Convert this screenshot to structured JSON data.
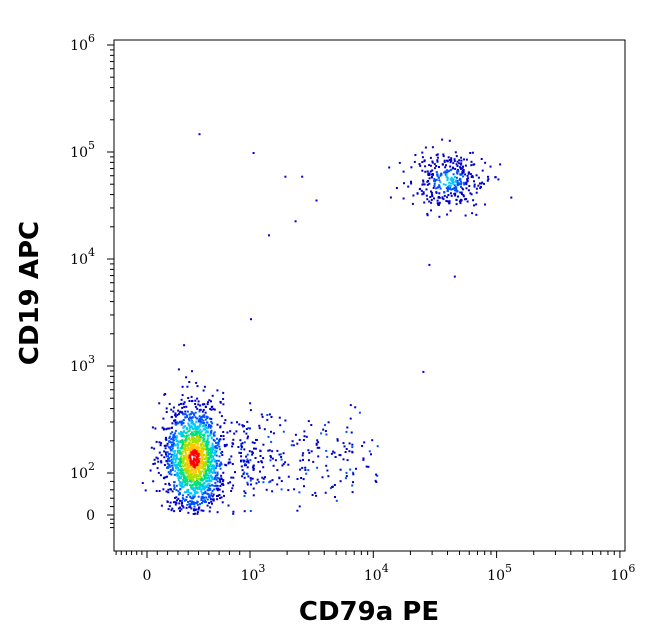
{
  "chart_data": {
    "type": "scatter",
    "subtype": "flow-cytometry-density-dot-plot",
    "title": "",
    "xlabel": "CD79a PE",
    "ylabel": "CD19 APC",
    "xscale": "biexponential (log above ~10^3)",
    "yscale": "biexponential (log above ~10^2)",
    "xlim": [
      -300,
      1000000
    ],
    "ylim": [
      -30,
      1000000
    ],
    "grid": false,
    "legend": "none",
    "x_ticks": [
      {
        "value": 0,
        "base": "0",
        "exp": ""
      },
      {
        "value": 1000,
        "base": "10",
        "exp": "3"
      },
      {
        "value": 10000,
        "base": "10",
        "exp": "4"
      },
      {
        "value": 100000,
        "base": "10",
        "exp": "5"
      },
      {
        "value": 1000000,
        "base": "10",
        "exp": "6"
      }
    ],
    "y_ticks": [
      {
        "value": 0,
        "base": "0",
        "exp": ""
      },
      {
        "value": 100,
        "base": "10",
        "exp": "2"
      },
      {
        "value": 1000,
        "base": "10",
        "exp": "3"
      },
      {
        "value": 10000,
        "base": "10",
        "exp": "4"
      },
      {
        "value": 100000,
        "base": "10",
        "exp": "5"
      },
      {
        "value": 1000000,
        "base": "10",
        "exp": "6"
      }
    ],
    "populations": [
      {
        "center_x": 450,
        "center_y": 140,
        "events": 1600,
        "shape": "dense oval cluster, red core"
      },
      {
        "center_x": 40000,
        "center_y": 55000,
        "events": 360,
        "shape": "compact cluster, cyan core"
      },
      {
        "center_x": 3000,
        "center_y": 140,
        "events": 260,
        "shape": "sparse rightward tail"
      }
    ],
    "outliers": [
      {
        "x": 500,
        "y": 150000
      },
      {
        "x": 1050,
        "y": 100000
      },
      {
        "x": 1900,
        "y": 60000
      },
      {
        "x": 2600,
        "y": 60000
      },
      {
        "x": 3400,
        "y": 36000
      },
      {
        "x": 2300,
        "y": 23000
      },
      {
        "x": 1400,
        "y": 17000
      },
      {
        "x": 28000,
        "y": 9000
      },
      {
        "x": 45000,
        "y": 7000
      },
      {
        "x": 1000,
        "y": 2800
      },
      {
        "x": 350,
        "y": 1600
      },
      {
        "x": 25000,
        "y": 900
      },
      {
        "x": 300,
        "y": 950
      },
      {
        "x": 7000,
        "y": 420
      }
    ],
    "color_scale": [
      "#0000c8",
      "#0050ff",
      "#00c8ff",
      "#00e080",
      "#a8e000",
      "#ffc800",
      "#ff0000"
    ]
  }
}
